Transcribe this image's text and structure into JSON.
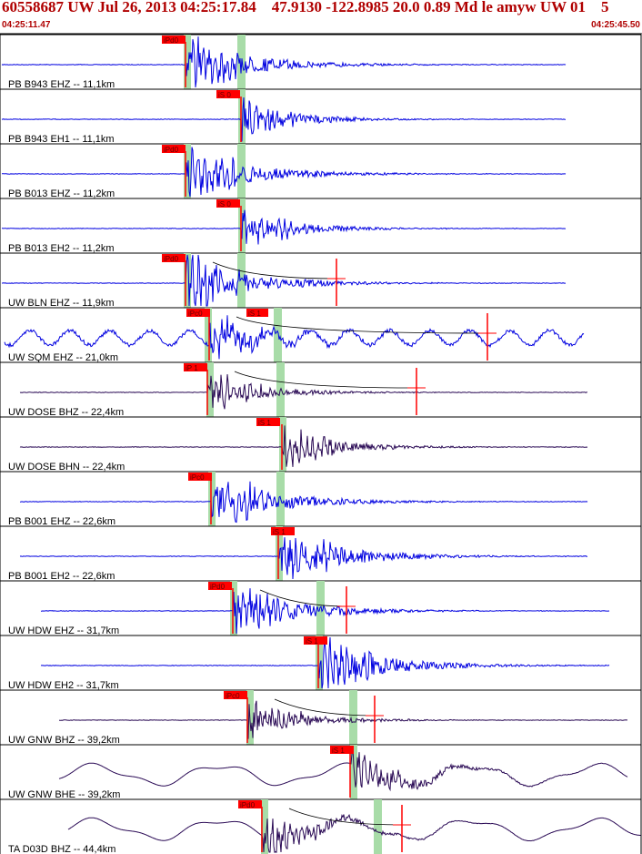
{
  "event_title": "60558687 UW Jul 26, 2013 04:25:17.84    47.9130 -122.8985 20.0 0.89 Md le amyw UW 01    5",
  "time_start": "04:25:11.47",
  "time_end": "04:25:45.50",
  "colors": {
    "header": "#b00000",
    "blue_trace": "#0000e0",
    "dark_trace": "#2a0a55",
    "pick": "#ff0000",
    "window": "#a8dca8",
    "border": "#000000"
  },
  "traces": [
    {
      "label": "PB B943 EHZ -- 11,1km",
      "pick": "iPd0",
      "color": "blue",
      "amp": "high"
    },
    {
      "label": "PB B943 EH1 -- 11,1km",
      "pick": "iS 0",
      "color": "blue",
      "amp": "med"
    },
    {
      "label": "PB B013 EHZ -- 11,2km",
      "pick": "iPd0",
      "color": "blue",
      "amp": "high"
    },
    {
      "label": "PB B013 EH2 -- 11,2km",
      "pick": "iS 0",
      "color": "blue",
      "amp": "med"
    },
    {
      "label": "UW BLN EHZ -- 11,9km",
      "pick": "iPd0",
      "color": "blue",
      "amp": "high"
    },
    {
      "label": "UW SQM EHZ -- 21,0km",
      "pick": "iPc0",
      "pick2": "iS 1",
      "color": "blue",
      "amp": "noisy"
    },
    {
      "label": "UW DOSE BHZ -- 22,4km",
      "pick": "iP 1",
      "color": "dark",
      "amp": "med"
    },
    {
      "label": "UW DOSE BHN -- 22,4km",
      "pick": "iS 1",
      "color": "dark",
      "amp": "med"
    },
    {
      "label": "PB B001 EHZ -- 22,6km",
      "pick": "iPc0",
      "color": "blue",
      "amp": "high"
    },
    {
      "label": "PB B001 EH2 -- 22,6km",
      "pick": "iS 1",
      "color": "blue",
      "amp": "high"
    },
    {
      "label": "UW HDW EHZ -- 31,7km",
      "pick": "iPd0",
      "color": "blue",
      "amp": "high"
    },
    {
      "label": "UW HDW EH2 -- 31,7km",
      "pick": "iS 1",
      "color": "blue",
      "amp": "high"
    },
    {
      "label": "UW GNW BHZ -- 39,2km",
      "pick": "iPc0",
      "color": "dark",
      "amp": "med"
    },
    {
      "label": "UW GNW BHE -- 39,2km",
      "pick": "iS 1",
      "color": "dark",
      "amp": "wavy"
    },
    {
      "label": "TA D03D BHZ -- 44,4km",
      "pick": "iPd0",
      "color": "dark",
      "amp": "wavy"
    }
  ]
}
